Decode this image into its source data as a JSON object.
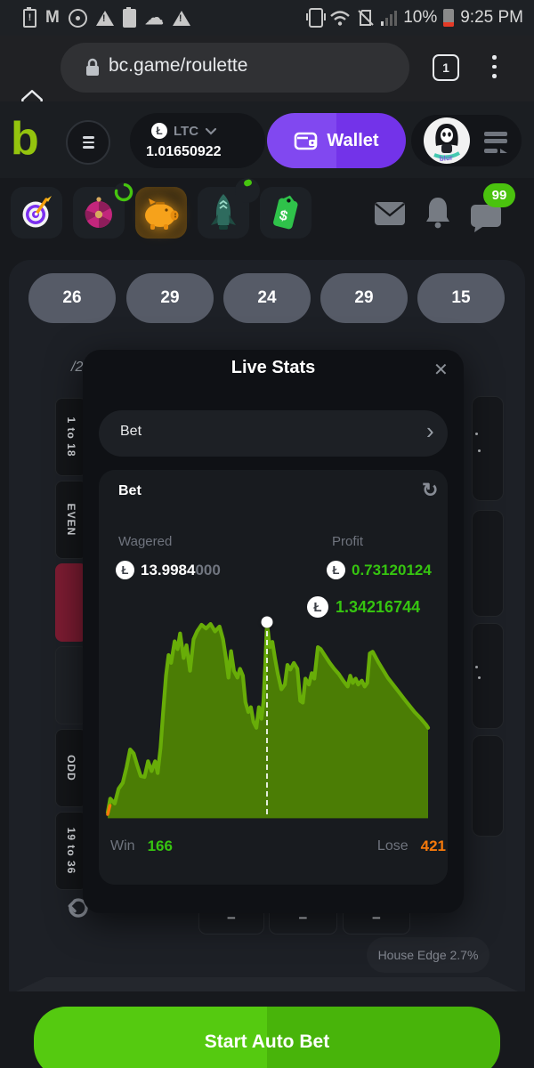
{
  "status_bar": {
    "time": "9:25 PM",
    "battery_percent": "10%",
    "gmail_glyph": "M",
    "alert_glyph": "!",
    "cloud_glyph": "☁",
    "left_icons": [
      "battery-alert",
      "gmail",
      "data-circle",
      "warning",
      "battery-saver",
      "cloud",
      "warning"
    ],
    "right_icons": [
      "vibrate",
      "wifi",
      "no-sim",
      "signal",
      "battery"
    ]
  },
  "browser": {
    "url": "bc.game/roulette",
    "tab_count": "1"
  },
  "header": {
    "logo_text": "b",
    "currency": "LTC",
    "balance": "1.01650922",
    "wallet_label": "Wallet",
    "coin_glyph": "Ł"
  },
  "nav_row": {
    "unread_badge": "99"
  },
  "recent_results": [
    "26",
    "29",
    "24",
    "29",
    "15"
  ],
  "table": {
    "half_label": "/2",
    "cells": [
      "1 to 18",
      "EVEN",
      "ODD",
      "19 to 36"
    ],
    "minus_label": "−",
    "house_edge": "House Edge 2.7%"
  },
  "live_stats": {
    "title": "Live Stats",
    "close_glyph": "✕",
    "filter_label": "Bet",
    "chevron_glyph": "›",
    "card_title": "Bet",
    "refresh_glyph": "↻",
    "wagered_label": "Wagered",
    "wagered_main": "13.9984",
    "wagered_trailing": "000",
    "profit_label": "Profit",
    "profit_value": "0.73120124",
    "tooltip_value": "1.34216744",
    "win_label": "Win",
    "win_value": "166",
    "lose_label": "Lose",
    "lose_value": "421",
    "coin_glyph": "Ł"
  },
  "footer": {
    "start_label": "Start Auto Bet"
  },
  "colors": {
    "accent_green": "#36c410",
    "accent_orange": "#f5790b",
    "chart_fill": "#4b7d05",
    "chart_stroke": "#68ad08",
    "wallet_purple": "#7a3bec",
    "button_green": "#4fc20d",
    "red_cell": "#7d1c32"
  },
  "chart_data": {
    "type": "area",
    "title": "Live Stats cumulative profit",
    "xlabel": "bet sequence (axis hidden)",
    "ylabel": "profit in LTC (axis hidden)",
    "grid": false,
    "legend": false,
    "win": 166,
    "lose": 421,
    "wagered": 13.9984,
    "profit": 0.73120124,
    "marker_value": 1.34216744,
    "start_tick_pct": [
      [
        0,
        100
      ],
      [
        0.7,
        95.5
      ]
    ],
    "series": [
      {
        "name": "Profit",
        "marker_pct": {
          "x": 49.7,
          "y": 2.3
        },
        "points_pct": [
          [
            0,
            99
          ],
          [
            0.8,
            92
          ],
          [
            2.2,
            94.5
          ],
          [
            3.4,
            87
          ],
          [
            4.7,
            84
          ],
          [
            5.9,
            76
          ],
          [
            7,
            67
          ],
          [
            8.1,
            69
          ],
          [
            9.2,
            75
          ],
          [
            10.3,
            80.5
          ],
          [
            11.5,
            81
          ],
          [
            12.6,
            73
          ],
          [
            13.7,
            78
          ],
          [
            14.8,
            73
          ],
          [
            15.6,
            79
          ],
          [
            16.5,
            66
          ],
          [
            17.3,
            48
          ],
          [
            18.2,
            29.5
          ],
          [
            19,
            19
          ],
          [
            19.8,
            23
          ],
          [
            20.9,
            12
          ],
          [
            21.8,
            16
          ],
          [
            22.6,
            8
          ],
          [
            23.7,
            20.5
          ],
          [
            24.6,
            14
          ],
          [
            25.7,
            27
          ],
          [
            26.8,
            11
          ],
          [
            27.9,
            7
          ],
          [
            29.3,
            3.6
          ],
          [
            30.7,
            5.5
          ],
          [
            32.1,
            3.2
          ],
          [
            33.5,
            7
          ],
          [
            34.9,
            4.5
          ],
          [
            36,
            11
          ],
          [
            36.9,
            20.5
          ],
          [
            37.7,
            30.5
          ],
          [
            38.5,
            17
          ],
          [
            39.4,
            27
          ],
          [
            40.5,
            30.5
          ],
          [
            41.3,
            26
          ],
          [
            42.2,
            29.5
          ],
          [
            43,
            43
          ],
          [
            43.9,
            48
          ],
          [
            44.7,
            45.5
          ],
          [
            45.5,
            53
          ],
          [
            46.4,
            56
          ],
          [
            47.2,
            45.5
          ],
          [
            48,
            51.4
          ],
          [
            48.6,
            43
          ],
          [
            49.2,
            23
          ],
          [
            49.7,
            2.3
          ],
          [
            50.6,
            15
          ],
          [
            51.4,
            12.3
          ],
          [
            52.2,
            20.5
          ],
          [
            53.1,
            28.6
          ],
          [
            54.2,
            36.4
          ],
          [
            55.3,
            34
          ],
          [
            56.1,
            24
          ],
          [
            57,
            26.4
          ],
          [
            58.1,
            23
          ],
          [
            59.2,
            26
          ],
          [
            60.1,
            42.3
          ],
          [
            60.9,
            43.2
          ],
          [
            61.7,
            31
          ],
          [
            62.8,
            34
          ],
          [
            63.7,
            28.2
          ],
          [
            64.5,
            31
          ],
          [
            65.6,
            15
          ],
          [
            66.5,
            16
          ],
          [
            67.9,
            19.5
          ],
          [
            69.3,
            23
          ],
          [
            70.7,
            26
          ],
          [
            72.1,
            28.6
          ],
          [
            73.5,
            32
          ],
          [
            74.9,
            35
          ],
          [
            75.7,
            29.5
          ],
          [
            76.5,
            33.2
          ],
          [
            77.4,
            31
          ],
          [
            78.2,
            34
          ],
          [
            79.3,
            32
          ],
          [
            80.2,
            35
          ],
          [
            81,
            33.2
          ],
          [
            81.8,
            18.2
          ],
          [
            82.7,
            17.3
          ],
          [
            84.6,
            23
          ],
          [
            87.4,
            30.5
          ],
          [
            90.2,
            36.4
          ],
          [
            93,
            42.3
          ],
          [
            95.8,
            48
          ],
          [
            97.8,
            51.4
          ],
          [
            99.4,
            54.5
          ],
          [
            100,
            56
          ]
        ]
      }
    ]
  }
}
